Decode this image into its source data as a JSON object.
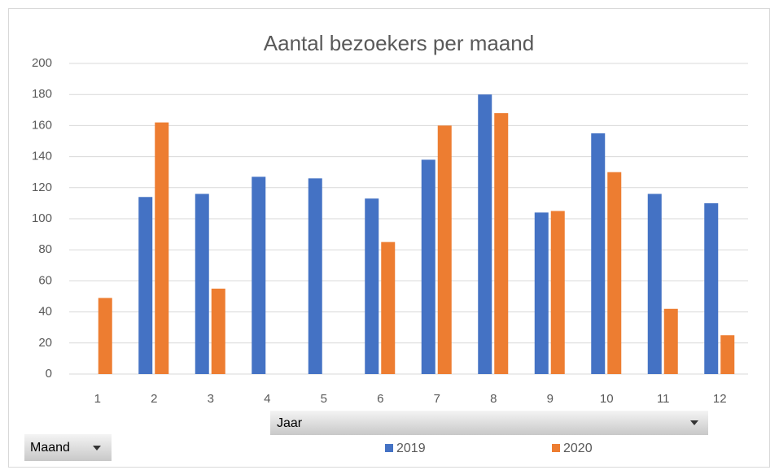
{
  "chart_data": {
    "type": "bar",
    "title": "Aantal bezoekers per maand",
    "categories": [
      "1",
      "2",
      "3",
      "4",
      "5",
      "6",
      "7",
      "8",
      "9",
      "10",
      "11",
      "12"
    ],
    "series": [
      {
        "name": "2019",
        "color": "#4472c4",
        "values": [
          null,
          114,
          116,
          127,
          126,
          113,
          138,
          180,
          104,
          155,
          116,
          110
        ]
      },
      {
        "name": "2020",
        "color": "#ed7d31",
        "values": [
          49,
          162,
          55,
          null,
          null,
          85,
          160,
          168,
          105,
          130,
          42,
          25
        ]
      }
    ],
    "ylim": [
      0,
      200
    ],
    "yticks": [
      0,
      20,
      40,
      60,
      80,
      100,
      120,
      140,
      160,
      180,
      200
    ],
    "grid": true,
    "legend_field": "Jaar",
    "axis_field": "Maand"
  }
}
